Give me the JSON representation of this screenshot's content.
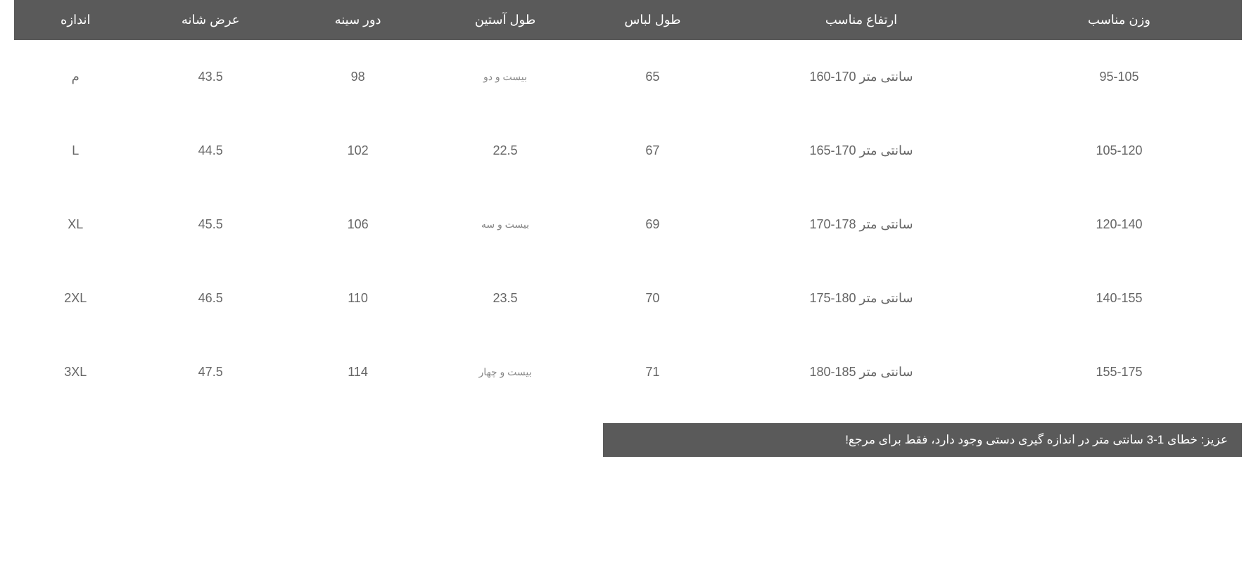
{
  "table": {
    "headers": {
      "size": "اندازه",
      "shoulder": "عرض شانه",
      "bust": "دور سینه",
      "sleeve": "طول آستین",
      "length": "طول لباس",
      "height": "ارتفاع مناسب",
      "weight": "وزن مناسب"
    },
    "rows": [
      {
        "size": "م",
        "shoulder": "43.5",
        "bust": "98",
        "sleeve": "بیست و دو",
        "sleeve_small": true,
        "length": "65",
        "height": "160-170 سانتی متر",
        "weight": "95-105"
      },
      {
        "size": "L",
        "shoulder": "44.5",
        "bust": "102",
        "sleeve": "22.5",
        "sleeve_small": false,
        "length": "67",
        "height": "165-170 سانتی متر",
        "weight": "105-120"
      },
      {
        "size": "XL",
        "shoulder": "45.5",
        "bust": "106",
        "sleeve": "بیست و سه",
        "sleeve_small": true,
        "length": "69",
        "height": "170-178 سانتی متر",
        "weight": "120-140"
      },
      {
        "size": "2XL",
        "shoulder": "46.5",
        "bust": "110",
        "sleeve": "23.5",
        "sleeve_small": false,
        "length": "70",
        "height": "175-180 سانتی متر",
        "weight": "140-155"
      },
      {
        "size": "3XL",
        "shoulder": "47.5",
        "bust": "114",
        "sleeve": "بیست و چهار",
        "sleeve_small": true,
        "length": "71",
        "height": "180-185 سانتی متر",
        "weight": "155-175"
      }
    ]
  },
  "note": "عزیز: خطای 1-3 سانتی متر در اندازه گیری دستی وجود دارد، فقط برای مرجع!",
  "styling": {
    "header_bg": "#5a5a5a",
    "header_text": "#ffffff",
    "body_text": "#666666",
    "small_text": "#888888",
    "note_bg": "#5a5a5a",
    "note_text": "#ffffff",
    "header_fontsize": 18,
    "body_fontsize": 18,
    "small_fontsize": 14,
    "note_fontsize": 17,
    "columns": [
      {
        "key": "size",
        "width": "10%"
      },
      {
        "key": "shoulder",
        "width": "12%"
      },
      {
        "key": "bust",
        "width": "12%"
      },
      {
        "key": "sleeve",
        "width": "12%"
      },
      {
        "key": "length",
        "width": "12%"
      },
      {
        "key": "height",
        "width": "22%"
      },
      {
        "key": "weight",
        "width": "20%"
      }
    ]
  }
}
